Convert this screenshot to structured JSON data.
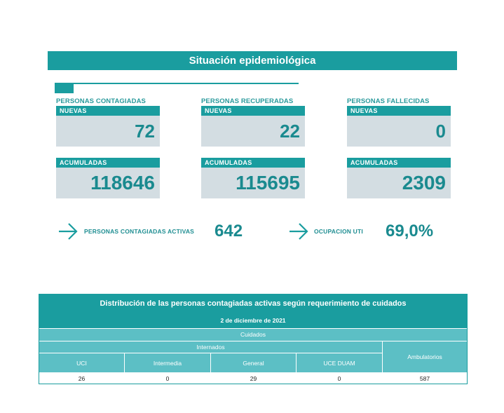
{
  "header": {
    "title": "Situación epidemiológica"
  },
  "groups": [
    {
      "label": "PERSONAS CONTAGIADAS",
      "new_label": "NUEVAS",
      "new_value": "72",
      "acc_label": "ACUMULADAS",
      "acc_value": "118646"
    },
    {
      "label": "PERSONAS RECUPERADAS",
      "new_label": "NUEVAS",
      "new_value": "22",
      "acc_label": "ACUMULADAS",
      "acc_value": "115695"
    },
    {
      "label": "PERSONAS FALLECIDAS",
      "new_label": "NUEVAS",
      "new_value": "0",
      "acc_label": "ACUMULADAS",
      "acc_value": "2309"
    }
  ],
  "active": {
    "label": "PERSONAS CONTAGIADAS ACTIVAS",
    "value": "642",
    "icon": "arrow-right-icon"
  },
  "uti": {
    "label": "OCUPACION UTI",
    "value": "69,0%",
    "icon": "arrow-right-icon"
  },
  "table": {
    "title": "Distribución de las personas contagiadas activas según requerimiento de cuidados",
    "date": "2 de diciembre de 2021",
    "cuidados": "Cuidados",
    "internados": "Internados",
    "ambulatorios": "Ambulatorios",
    "columns": [
      "UCI",
      "Intermedia",
      "General",
      "UCE DUAM"
    ],
    "values": [
      "26",
      "0",
      "29",
      "0",
      "587"
    ]
  },
  "colors": {
    "teal": "#1a9d9f",
    "light_teal": "#5cbfc5",
    "box_bg": "#d3dde2",
    "value_text": "#1a8a8f"
  }
}
